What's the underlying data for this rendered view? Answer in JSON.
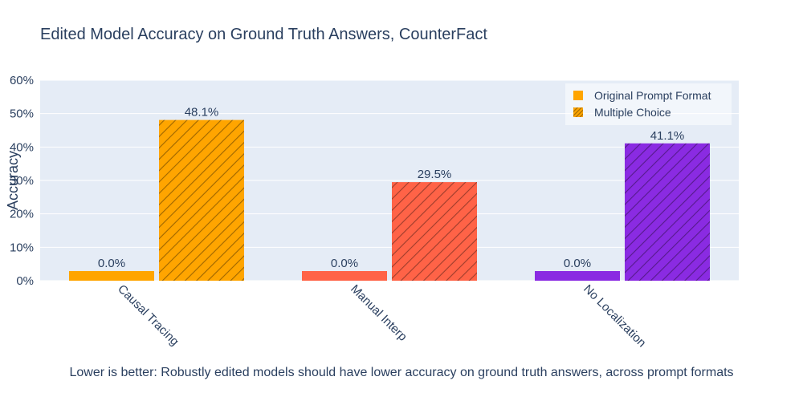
{
  "chart_data": {
    "type": "bar",
    "title": "Edited Model Accuracy on Ground Truth Answers, CounterFact",
    "xlabel": "",
    "ylabel": "Accuracy",
    "ylim": [
      0,
      60
    ],
    "yticks": [
      "0%",
      "10%",
      "20%",
      "30%",
      "40%",
      "50%",
      "60%"
    ],
    "categories": [
      "Causal Tracing",
      "Manual Interp",
      "No Localization"
    ],
    "category_colors": [
      "#FFA500",
      "#FF6347",
      "#8A2BE2"
    ],
    "series": [
      {
        "name": "Original Prompt Format",
        "pattern": "solid",
        "values": [
          0.0,
          0.0,
          0.0
        ],
        "labels": [
          "0.0%",
          "0.0%",
          "0.0%"
        ]
      },
      {
        "name": "Multiple Choice",
        "pattern": "hatch",
        "values": [
          48.1,
          29.5,
          41.1
        ],
        "labels": [
          "48.1%",
          "29.5%",
          "41.1%"
        ]
      }
    ],
    "grid": true,
    "legend_position": "top-right",
    "footnote": "Lower is better: Robustly edited models should have lower accuracy on ground truth answers, across prompt formats"
  }
}
